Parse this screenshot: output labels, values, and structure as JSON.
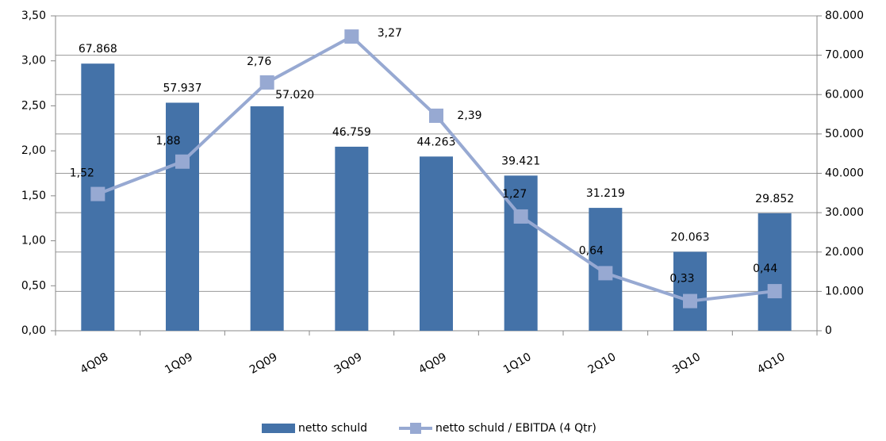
{
  "chart_data": {
    "type": "bar+line",
    "categories": [
      "4Q08",
      "1Q09",
      "2Q09",
      "3Q09",
      "4Q09",
      "1Q10",
      "2Q10",
      "3Q10",
      "4Q10"
    ],
    "series": [
      {
        "name": "netto schuld",
        "type": "bar",
        "axis": "y2",
        "color": "#4472a8",
        "values": [
          67868,
          57937,
          57020,
          46759,
          44263,
          39421,
          31219,
          20063,
          29852
        ],
        "value_labels": [
          "67.868",
          "57.937",
          "57.020",
          "46.759",
          "44.263",
          "39.421",
          "31.219",
          "20.063",
          "29.852"
        ]
      },
      {
        "name": "netto schuld / EBITDA (4 Qtr)",
        "type": "line",
        "axis": "y",
        "color": "#97a9d2",
        "values": [
          1.52,
          1.88,
          2.76,
          3.27,
          2.39,
          1.27,
          0.64,
          0.33,
          0.44
        ],
        "value_labels": [
          "1,52",
          "1,88",
          "2,76",
          "3,27",
          "2,39",
          "1,27",
          "0,64",
          "0,33",
          "0,44"
        ]
      }
    ],
    "ylim": [
      0,
      3.5
    ],
    "yticks": [
      {
        "value": 0,
        "label": "0,00"
      },
      {
        "value": 0.5,
        "label": "0,50"
      },
      {
        "value": 1,
        "label": "1,00"
      },
      {
        "value": 1.5,
        "label": "1,50"
      },
      {
        "value": 2,
        "label": "2,00"
      },
      {
        "value": 2.5,
        "label": "2,50"
      },
      {
        "value": 3,
        "label": "3,00"
      },
      {
        "value": 3.5,
        "label": "3,50"
      }
    ],
    "y2lim": [
      0,
      80000
    ],
    "y2ticks": [
      0,
      {
        "value": 10000,
        "label": "10.000"
      },
      {
        "value": 20000,
        "label": "20.000"
      },
      {
        "value": 30000,
        "label": "30.000"
      },
      {
        "value": 40000,
        "label": "40.000"
      },
      {
        "value": 50000,
        "label": "50.000"
      },
      {
        "value": 60000,
        "label": "60.000"
      },
      {
        "value": 70000,
        "label": "70.000"
      },
      {
        "value": 80000,
        "label": "80.000"
      }
    ],
    "grid": true,
    "legend": "bottom"
  }
}
